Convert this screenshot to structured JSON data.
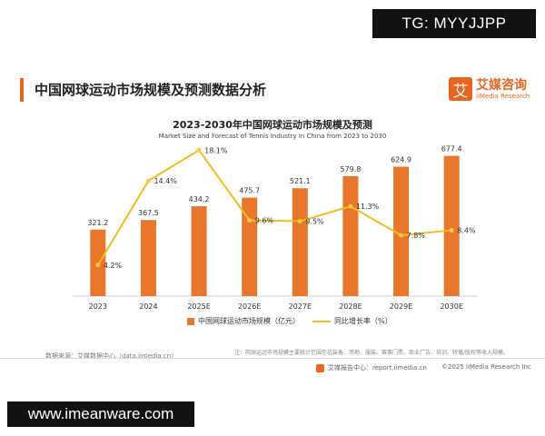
{
  "watermarks": {
    "top": "TG: MYYJJPP",
    "bottom": "www.imeanware.com"
  },
  "header": {
    "title": "中国网球运动市场规模及预测数据分析"
  },
  "logo": {
    "box_char": "艾",
    "cn": "艾媒咨询",
    "en": "iiMedia Research"
  },
  "colors": {
    "accent": "#e8651e",
    "bar": "#e8762b",
    "line": "#f2bd1c",
    "point": "#f7c948"
  },
  "chart_data": {
    "type": "bar",
    "title": "2023-2030年中国网球运动市场规模及预测",
    "subtitle": "Market Size and Forecast of Tennis Industry in China from 2023 to 2030",
    "categories": [
      "2023",
      "2024",
      "2025E",
      "2026E",
      "2027E",
      "2028E",
      "2029E",
      "2030E"
    ],
    "series": [
      {
        "name": "中国网球运动市场规模（亿元）",
        "type": "bar",
        "values": [
          321.2,
          367.5,
          434.2,
          475.7,
          521.1,
          579.8,
          624.9,
          677.4
        ],
        "labels": [
          "321.2",
          "367.5",
          "434.2",
          "475.7",
          "521.1",
          "579.8",
          "624.9",
          "677.4"
        ]
      },
      {
        "name": "同比增长率（%）",
        "type": "line",
        "axis": "secondary",
        "values": [
          4.2,
          14.4,
          18.1,
          9.6,
          9.5,
          11.3,
          7.8,
          8.4
        ],
        "labels": [
          "4.2%",
          "14.4%",
          "18.1%",
          "9.6%",
          "9.5%",
          "11.3%",
          "7.8%",
          "8.4%"
        ]
      }
    ],
    "ylim": [
      0,
      680
    ],
    "y2lim": [
      0,
      20
    ],
    "grid": false,
    "legend": "bottom"
  },
  "footer": {
    "source": "数据来源：艾媒数据中心（data.iimedia.cn）",
    "note": "注：网球运动市场规模主要统计范围包括装备、场地、服装、赛事门票、商业广告、培训、转播/版权等收入规模。",
    "report": "艾媒报告中心：report.iimedia.cn",
    "copyright": "©2025  iiMedia Research  Inc"
  }
}
